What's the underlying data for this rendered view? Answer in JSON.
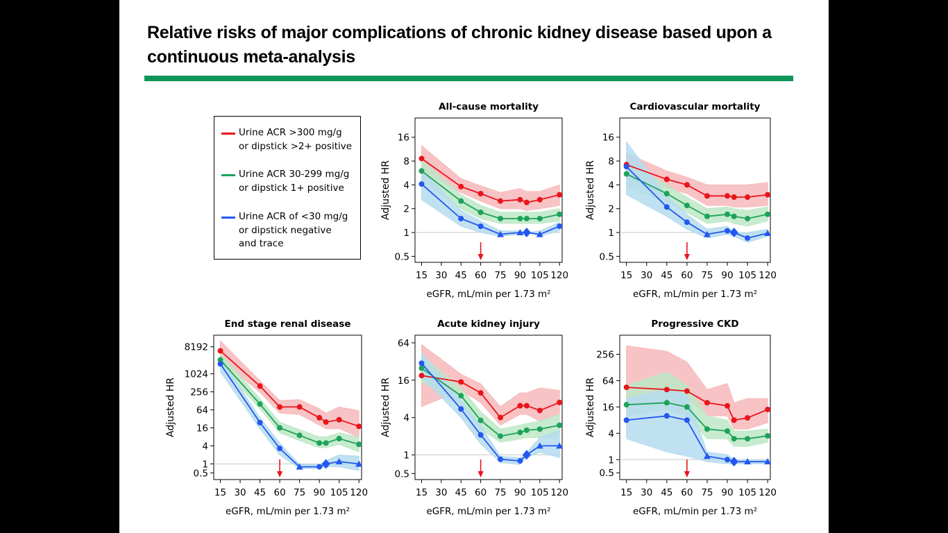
{
  "title": "Relative risks of major complications of chronic kidney disease based upon a continuous meta-analysis",
  "colors": {
    "rule": "#0f9559",
    "red": "#e8151b",
    "green": "#1da25a",
    "blue": "#2357f0",
    "red_band": "#f7b9bb",
    "green_band": "#bde8c5",
    "blue_band": "#b5dcee",
    "arrow": "#e8151b"
  },
  "legend": [
    {
      "label": "Urine ACR >300 mg/g\nor dipstick >2+ positive",
      "color": "#e8151b"
    },
    {
      "label": "Urine ACR 30-299 mg/g\nor dipstick 1+ positive",
      "color": "#1da25a"
    },
    {
      "label": "Urine ACR of <30 mg/g\nor dipstick negative\nand trace",
      "color": "#2357f0"
    }
  ],
  "chart_data": [
    {
      "type": "line",
      "title": "All-cause mortality",
      "xlabel": "eGFR, mL/min per 1.73 m²",
      "ylabel": "Adjusted HR",
      "log_y": true,
      "x_ticks": [
        15,
        30,
        45,
        60,
        75,
        90,
        105,
        120
      ],
      "y_ticks": [
        0.5,
        1,
        2,
        4,
        8,
        16
      ],
      "y_tick_labels": [
        "0.5",
        "1",
        "2",
        "4",
        "8",
        "16"
      ],
      "xlim": [
        10,
        122
      ],
      "ylim": [
        0.42,
        28
      ],
      "reference_line_y": 1,
      "arrow_x": 60,
      "series": [
        {
          "color_key": "red",
          "x": [
            15,
            45,
            60,
            75,
            90,
            95,
            105,
            120
          ],
          "y": [
            8.6,
            3.8,
            3.1,
            2.5,
            2.6,
            2.4,
            2.6,
            3.0
          ],
          "lower": [
            6.0,
            3.2,
            2.5,
            2.0,
            2.0,
            1.9,
            2.0,
            2.2
          ],
          "upper": [
            12.5,
            4.8,
            3.9,
            3.2,
            3.6,
            3.3,
            3.3,
            4.0
          ],
          "markers": [
            "circle",
            "circle",
            "circle",
            "circle",
            "circle",
            "circle",
            "circle",
            "circle"
          ]
        },
        {
          "color_key": "green",
          "x": [
            15,
            45,
            60,
            75,
            90,
            95,
            105,
            120
          ],
          "y": [
            6.0,
            2.5,
            1.8,
            1.5,
            1.5,
            1.5,
            1.5,
            1.7
          ],
          "lower": [
            4.5,
            2.0,
            1.5,
            1.3,
            1.3,
            1.3,
            1.3,
            1.4
          ],
          "upper": [
            8.2,
            3.0,
            2.2,
            1.8,
            1.8,
            1.8,
            1.8,
            2.0
          ],
          "markers": [
            "circle",
            "circle",
            "circle",
            "circle",
            "circle",
            "circle",
            "circle",
            "circle"
          ]
        },
        {
          "color_key": "blue",
          "x": [
            15,
            45,
            60,
            75,
            90,
            95,
            105,
            120
          ],
          "y": [
            4.1,
            1.5,
            1.2,
            0.95,
            1.0,
            1.0,
            0.95,
            1.2
          ],
          "lower": [
            2.6,
            1.2,
            1.0,
            0.9,
            0.95,
            1.0,
            0.9,
            1.05
          ],
          "upper": [
            6.2,
            1.9,
            1.4,
            1.05,
            1.05,
            1.0,
            1.05,
            1.35
          ],
          "markers": [
            "circle",
            "circle",
            "circle",
            "triangle",
            "triangle",
            "diamond",
            "triangle",
            "circle"
          ]
        }
      ]
    },
    {
      "type": "line",
      "title": "Cardiovascular mortality",
      "xlabel": "eGFR, mL/min per 1.73 m²",
      "ylabel": "Adjusted HR",
      "log_y": true,
      "x_ticks": [
        15,
        30,
        45,
        60,
        75,
        90,
        105,
        120
      ],
      "y_ticks": [
        0.5,
        1,
        2,
        4,
        8,
        16
      ],
      "y_tick_labels": [
        "0.5",
        "1",
        "2",
        "4",
        "8",
        "16"
      ],
      "xlim": [
        10,
        122
      ],
      "ylim": [
        0.42,
        28
      ],
      "reference_line_y": 1,
      "arrow_x": 60,
      "series": [
        {
          "color_key": "red",
          "x": [
            15,
            45,
            60,
            75,
            90,
            95,
            105,
            120
          ],
          "y": [
            7.2,
            4.7,
            4.0,
            2.9,
            2.9,
            2.8,
            2.8,
            3.0
          ],
          "lower": [
            5.0,
            3.7,
            3.1,
            2.2,
            2.2,
            2.1,
            2.1,
            2.2
          ],
          "upper": [
            10.0,
            6.0,
            5.0,
            4.0,
            4.0,
            4.0,
            4.0,
            4.3
          ],
          "markers": [
            "circle",
            "circle",
            "circle",
            "circle",
            "circle",
            "circle",
            "circle",
            "circle"
          ]
        },
        {
          "color_key": "green",
          "x": [
            15,
            45,
            60,
            75,
            90,
            95,
            105,
            120
          ],
          "y": [
            5.5,
            3.1,
            2.2,
            1.6,
            1.7,
            1.6,
            1.5,
            1.7
          ],
          "lower": [
            3.8,
            2.4,
            1.8,
            1.3,
            1.4,
            1.3,
            1.2,
            1.4
          ],
          "upper": [
            8.0,
            4.0,
            2.8,
            2.0,
            2.1,
            2.0,
            1.9,
            2.1
          ],
          "markers": [
            "circle",
            "circle",
            "circle",
            "circle",
            "circle",
            "circle",
            "circle",
            "circle"
          ]
        },
        {
          "color_key": "blue",
          "x": [
            15,
            45,
            60,
            75,
            90,
            95,
            105,
            120
          ],
          "y": [
            6.8,
            2.1,
            1.35,
            0.95,
            1.05,
            1.0,
            0.85,
            0.98
          ],
          "lower": [
            3.0,
            1.6,
            1.1,
            0.85,
            0.95,
            0.9,
            0.75,
            0.9
          ],
          "upper": [
            14.0,
            2.9,
            1.7,
            1.1,
            1.2,
            1.0,
            1.0,
            1.1
          ],
          "markers": [
            "circle",
            "circle",
            "circle",
            "triangle",
            "circle",
            "diamond",
            "circle",
            "triangle"
          ]
        }
      ]
    },
    {
      "type": "line",
      "title": "End stage renal disease",
      "xlabel": "eGFR, mL/min per 1.73 m²",
      "ylabel": "Adjusted HR",
      "log_y": true,
      "x_ticks": [
        15,
        30,
        45,
        60,
        75,
        90,
        105,
        120
      ],
      "y_ticks": [
        0.5,
        1,
        4,
        16,
        64,
        256,
        1024,
        8192
      ],
      "y_tick_labels": [
        "0.5",
        "1",
        "4",
        "16",
        "64",
        "256",
        "1024",
        "8192"
      ],
      "xlim": [
        10,
        122
      ],
      "ylim": [
        0.3,
        20000
      ],
      "reference_line_y": 1,
      "arrow_x": 60,
      "series": [
        {
          "color_key": "red",
          "x": [
            15,
            45,
            60,
            75,
            90,
            95,
            105,
            120
          ],
          "y": [
            6000,
            400,
            80,
            80,
            35,
            25,
            30,
            18
          ],
          "lower": [
            3000,
            250,
            50,
            45,
            20,
            15,
            15,
            8
          ],
          "upper": [
            13000,
            600,
            130,
            140,
            70,
            50,
            80,
            60
          ],
          "markers": [
            "circle",
            "circle",
            "circle",
            "circle",
            "circle",
            "circle",
            "circle",
            "circle"
          ]
        },
        {
          "color_key": "green",
          "x": [
            15,
            45,
            60,
            75,
            90,
            95,
            105,
            120
          ],
          "y": [
            3000,
            100,
            16,
            9,
            5,
            5,
            7,
            4.5
          ],
          "lower": [
            1800,
            70,
            11,
            6,
            3.5,
            3.5,
            4.5,
            2.5
          ],
          "upper": [
            5000,
            150,
            25,
            14,
            8,
            8,
            11,
            8
          ],
          "markers": [
            "circle",
            "circle",
            "circle",
            "circle",
            "circle",
            "circle",
            "circle",
            "circle"
          ]
        },
        {
          "color_key": "blue",
          "x": [
            15,
            45,
            60,
            75,
            90,
            95,
            105,
            120
          ],
          "y": [
            2200,
            24,
            3.3,
            0.8,
            0.8,
            1.0,
            1.2,
            1.0
          ],
          "lower": [
            1200,
            15,
            2.0,
            0.7,
            0.7,
            0.8,
            0.8,
            0.6
          ],
          "upper": [
            3500,
            35,
            5,
            0.95,
            0.95,
            1.3,
            2.0,
            1.8
          ],
          "markers": [
            "circle",
            "circle",
            "circle",
            "triangle",
            "circle",
            "diamond",
            "triangle",
            "triangle"
          ]
        }
      ]
    },
    {
      "type": "line",
      "title": "Acute kidney injury",
      "xlabel": "eGFR, mL/min per 1.73 m²",
      "ylabel": "Adjusted HR",
      "log_y": true,
      "x_ticks": [
        15,
        30,
        45,
        60,
        75,
        90,
        105,
        120
      ],
      "y_ticks": [
        0.5,
        1,
        4,
        16,
        64
      ],
      "y_tick_labels": [
        "0.5",
        "1",
        "4",
        "16",
        "64"
      ],
      "xlim": [
        10,
        122
      ],
      "ylim": [
        0.4,
        85
      ],
      "reference_line_y": 1,
      "arrow_x": 60,
      "series": [
        {
          "color_key": "red",
          "x": [
            15,
            45,
            60,
            75,
            90,
            95,
            105,
            120
          ],
          "y": [
            19,
            15,
            10,
            4.0,
            6.2,
            6.2,
            5.2,
            7.0
          ],
          "lower": [
            6,
            11,
            7,
            3.0,
            4.5,
            4.5,
            3.5,
            4.5
          ],
          "upper": [
            60,
            20,
            14,
            6,
            10,
            10,
            12,
            11
          ],
          "markers": [
            "circle",
            "circle",
            "circle",
            "circle",
            "circle",
            "circle",
            "circle",
            "circle"
          ]
        },
        {
          "color_key": "green",
          "x": [
            15,
            45,
            60,
            75,
            90,
            95,
            105,
            120
          ],
          "y": [
            25,
            9,
            3.6,
            2.0,
            2.3,
            2.5,
            2.6,
            3.0
          ],
          "lower": [
            15,
            6.5,
            2.6,
            1.6,
            1.8,
            1.9,
            1.9,
            2.0
          ],
          "upper": [
            40,
            12,
            5,
            2.6,
            3.0,
            3.2,
            3.5,
            4.5
          ],
          "markers": [
            "circle",
            "circle",
            "circle",
            "circle",
            "circle",
            "circle",
            "circle",
            "circle"
          ]
        },
        {
          "color_key": "blue",
          "x": [
            15,
            45,
            60,
            75,
            90,
            95,
            105,
            120
          ],
          "y": [
            30,
            5.5,
            2.1,
            0.85,
            0.8,
            1.0,
            1.4,
            1.4
          ],
          "lower": [
            18,
            4,
            1.5,
            0.75,
            0.7,
            0.9,
            1.1,
            0.9
          ],
          "upper": [
            45,
            7.5,
            3.0,
            0.95,
            0.9,
            1.1,
            1.9,
            2.5
          ],
          "markers": [
            "circle",
            "circle",
            "circle",
            "circle",
            "circle",
            "diamond",
            "triangle",
            "triangle"
          ]
        }
      ]
    },
    {
      "type": "line",
      "title": "Progressive CKD",
      "xlabel": "eGFR, mL/min per 1.73 m²",
      "ylabel": "Adjusted HR",
      "log_y": true,
      "x_ticks": [
        15,
        30,
        45,
        60,
        75,
        90,
        105,
        120
      ],
      "y_ticks": [
        0.5,
        1,
        4,
        16,
        64,
        256
      ],
      "y_tick_labels": [
        "0.5",
        "1",
        "4",
        "16",
        "64",
        "256"
      ],
      "xlim": [
        10,
        122
      ],
      "ylim": [
        0.35,
        700
      ],
      "reference_line_y": 1,
      "arrow_x": 60,
      "series": [
        {
          "color_key": "red",
          "x": [
            15,
            45,
            60,
            75,
            90,
            95,
            105,
            120
          ],
          "y": [
            45,
            40,
            37,
            20,
            17,
            8,
            9,
            14
          ],
          "lower": [
            18,
            25,
            25,
            10,
            10,
            5,
            5,
            7
          ],
          "upper": [
            400,
            300,
            170,
            40,
            55,
            20,
            25,
            25
          ],
          "markers": [
            "circle",
            "circle",
            "circle",
            "circle",
            "circle",
            "circle",
            "circle",
            "circle"
          ]
        },
        {
          "color_key": "green",
          "x": [
            15,
            45,
            60,
            75,
            90,
            95,
            105,
            120
          ],
          "y": [
            18,
            20,
            16,
            5,
            4.5,
            3,
            3,
            3.5
          ],
          "lower": [
            10,
            14,
            10,
            3,
            3,
            2,
            2,
            2.5
          ],
          "upper": [
            50,
            100,
            50,
            10,
            8,
            4.5,
            4.5,
            5
          ],
          "markers": [
            "circle",
            "circle",
            "circle",
            "circle",
            "circle",
            "circle",
            "circle",
            "circle"
          ]
        },
        {
          "color_key": "blue",
          "x": [
            15,
            45,
            60,
            75,
            90,
            95,
            105,
            120
          ],
          "y": [
            8,
            10,
            8,
            1.2,
            1.0,
            0.9,
            0.9,
            0.9
          ],
          "lower": [
            3,
            1.5,
            1.2,
            0.9,
            0.8,
            0.8,
            0.8,
            0.8
          ],
          "upper": [
            25,
            40,
            30,
            1.5,
            1.3,
            1.0,
            1.0,
            1.0
          ],
          "markers": [
            "circle",
            "circle",
            "circle",
            "triangle",
            "circle",
            "diamond",
            "triangle",
            "triangle"
          ]
        }
      ]
    }
  ]
}
